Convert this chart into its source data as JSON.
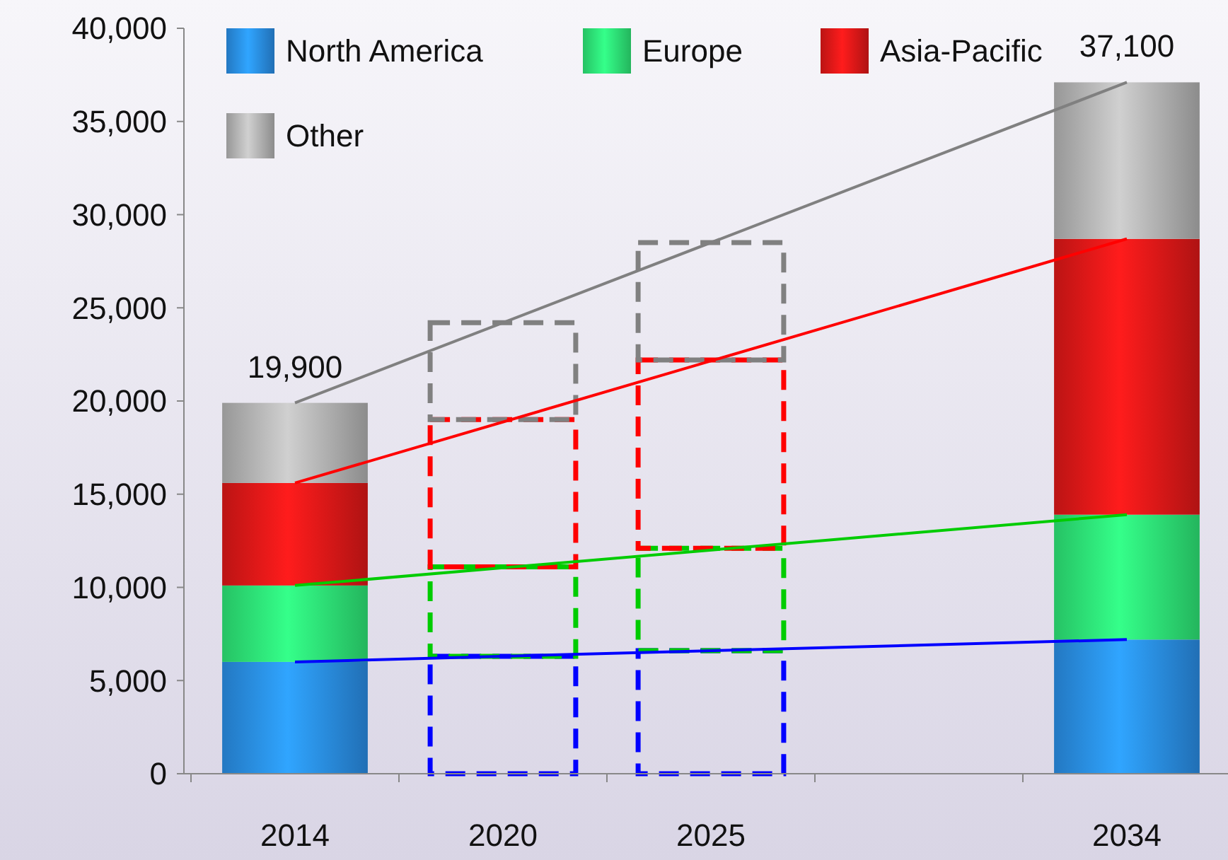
{
  "chart_data": {
    "type": "bar",
    "stacked": true,
    "legend": "top left",
    "categories": [
      "2014",
      "2020",
      "2025",
      null,
      "2034"
    ],
    "ylim": [
      0,
      40000
    ],
    "yticks": [
      {
        "value": 0,
        "label": "0"
      },
      {
        "value": 5000,
        "label": "5,000"
      },
      {
        "value": 10000,
        "label": "10,000"
      },
      {
        "value": 15000,
        "label": "15,000"
      },
      {
        "value": 20000,
        "label": "20,000"
      },
      {
        "value": 25000,
        "label": "25,000"
      },
      {
        "value": 30000,
        "label": "30,000"
      },
      {
        "value": 35000,
        "label": "35,000"
      },
      {
        "value": 40000,
        "label": "40,000"
      }
    ],
    "series": [
      {
        "name": "North America",
        "color": "#2a8fe8",
        "values": [
          6000,
          null,
          null,
          null,
          7200
        ]
      },
      {
        "name": "Europe",
        "color": "#2ee878",
        "values": [
          4100,
          null,
          null,
          null,
          6700
        ]
      },
      {
        "name": "Asia-Pacific",
        "color": "#e01818",
        "values": [
          5500,
          null,
          null,
          null,
          14800
        ]
      },
      {
        "name": "Other",
        "color": "#b4b4b4",
        "values": [
          4300,
          null,
          null,
          null,
          8400
        ]
      },
      {
        "color": "#0000ff",
        "line_style": "dashed",
        "values": [
          null,
          6300,
          6600,
          null,
          null
        ]
      },
      {
        "color": "#00cc00",
        "line_style": "dashed",
        "values": [
          null,
          4800,
          5500,
          null,
          null
        ]
      },
      {
        "color": "#ff0000",
        "line_style": "dashed",
        "values": [
          null,
          7900,
          10100,
          null,
          null
        ]
      },
      {
        "color": "#808080",
        "line_style": "dashed",
        "values": [
          null,
          5200,
          6300,
          null,
          null
        ]
      },
      {
        "type": "line",
        "color": "#808080",
        "values": [
          19900,
          null,
          null,
          null,
          37100
        ]
      },
      {
        "type": "line",
        "color": "#ff0000",
        "values": [
          15600,
          null,
          null,
          null,
          28700
        ]
      },
      {
        "type": "line",
        "color": "#00cc00",
        "values": [
          10100,
          null,
          null,
          null,
          13900
        ]
      },
      {
        "type": "line",
        "color": "#0000ff",
        "values": [
          6000,
          null,
          null,
          null,
          7200
        ]
      }
    ],
    "totals": [
      "19,900",
      null,
      null,
      null,
      "37,100"
    ]
  }
}
